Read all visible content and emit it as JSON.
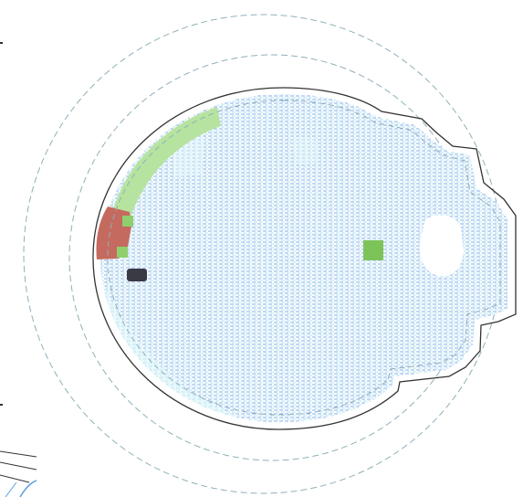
{
  "drawing": {
    "colors": {
      "background": "#ffffff",
      "outline": "#333333",
      "dashed_circle": "#8fb0b8",
      "hatch_blue": "#7aa6e6",
      "hatch_cyan": "#a9e0f0",
      "green_band": "#b7e3a0",
      "green_patch": "#7cc35a",
      "red_block": "#c56a5f",
      "dark_marker": "#3a3a44",
      "white_void": "#ffffff",
      "corner_blue": "#5aa0e0"
    },
    "features": [
      {
        "kind": "outer-dashed-circle",
        "icon": "dashed-ring-icon"
      },
      {
        "kind": "inner-dashed-circle",
        "icon": "dashed-ring-icon"
      },
      {
        "kind": "solid-outline",
        "icon": "outline-shape-icon"
      },
      {
        "kind": "inner-dashed-outline",
        "icon": "dashed-outline-icon"
      },
      {
        "kind": "hatched-fill",
        "icon": "hatch-pattern-icon"
      },
      {
        "kind": "green-arc-band",
        "icon": "arc-band-icon"
      },
      {
        "kind": "red-block",
        "icon": "block-icon"
      },
      {
        "kind": "dark-marker",
        "icon": "marker-icon"
      },
      {
        "kind": "green-patch",
        "icon": "patch-icon"
      },
      {
        "kind": "white-void",
        "icon": "void-icon"
      }
    ]
  }
}
